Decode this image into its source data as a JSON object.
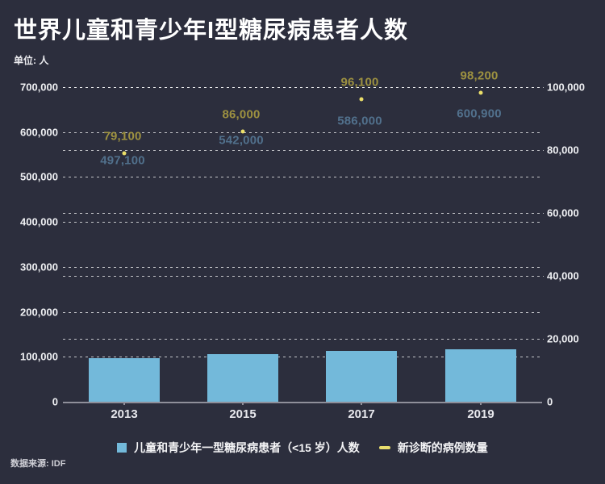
{
  "header": {
    "title": "世界儿童和青少年I型糖尿病患者人数",
    "unit_label": "单位: 人"
  },
  "footer": {
    "source": "数据来源: IDF"
  },
  "colors": {
    "background": "#2c2e3d",
    "bar_fill": "#73b9da",
    "marker_fill": "#ecdf69",
    "bar_value_label": "#51708c",
    "marker_value_label": "#9d9140",
    "axis_text": "#eff0f3",
    "gridline": "rgba(255,255,255,0.72)",
    "baseline": "#8f8f9a"
  },
  "legend": {
    "items": [
      {
        "label": "儿童和青少年一型糖尿病患者（<15 岁）人数",
        "swatch": "square",
        "color": "#73b9da"
      },
      {
        "label": "新诊断的病例数量",
        "swatch": "dash",
        "color": "#e9de6e"
      }
    ]
  },
  "chart_data": {
    "type": "bar",
    "subtype": "bar+scatter dual-axis",
    "title": "世界儿童和青少年I型糖尿病患者人数",
    "unit": "人",
    "categories": [
      "2013",
      "2015",
      "2017",
      "2019"
    ],
    "series": [
      {
        "name": "儿童和青少年一型糖尿病患者（<15 岁）人数",
        "type": "bar",
        "axis": "left",
        "values": [
          497100,
          542000,
          586000,
          600900
        ],
        "labels": [
          "497,100",
          "542,000",
          "586,000",
          "600,900"
        ]
      },
      {
        "name": "新诊断的病例数量",
        "type": "scatter",
        "axis": "right",
        "values": [
          79100,
          86000,
          96100,
          98200
        ],
        "labels": [
          "79,100",
          "86,000",
          "96,100",
          "98,200"
        ]
      }
    ],
    "left_axis": {
      "range": [
        0,
        700000
      ],
      "tick_values": [
        0,
        100000,
        200000,
        300000,
        400000,
        500000,
        600000,
        700000
      ],
      "tick_labels": [
        "0",
        "100,000",
        "200,000",
        "300,000",
        "400,000",
        "500,000",
        "600,000",
        "700,000"
      ]
    },
    "right_axis": {
      "range": [
        0,
        100000
      ],
      "tick_values": [
        0,
        20000,
        40000,
        60000,
        80000,
        100000
      ],
      "tick_labels": [
        "0",
        "20,000",
        "40,000",
        "60,000",
        "80,000",
        "100,000"
      ]
    },
    "grid": "dashed horizontal",
    "legend_position": "bottom",
    "source": "IDF"
  }
}
